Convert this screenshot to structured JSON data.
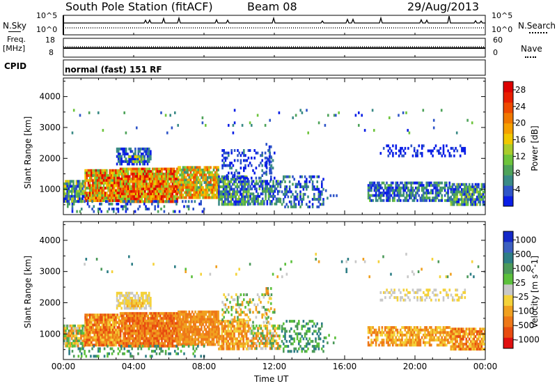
{
  "header": {
    "station": "South Pole Station (fitACF)",
    "beam": "Beam 08",
    "date": "29/Aug/2013"
  },
  "strips": {
    "nsky_label": "N.Sky",
    "nsearch_label": "N.Search",
    "nsky_ticks": [
      "10^5",
      "10^0"
    ],
    "nsearch_ticks": [
      "10^5",
      "10^0"
    ],
    "freq_label": "Freq.",
    "freq_unit": "[MHz]",
    "freq_ticks": [
      "18",
      "8"
    ],
    "nave_label": "Nave",
    "nave_ticks": [
      "60",
      "0"
    ],
    "cpid_label": "CPID",
    "cpid_value": "normal (fast) 151 RF"
  },
  "colors": {
    "power": [
      "#0a1ee6",
      "#2f55c8",
      "#3a8a86",
      "#4ea35a",
      "#6ec43c",
      "#aacc2c",
      "#f0c800",
      "#f5a000",
      "#f07800",
      "#ee4a00",
      "#e81e00",
      "#dd0000"
    ],
    "velocity": [
      "#1428c8",
      "#3c60c0",
      "#2e7e86",
      "#4c9a5a",
      "#5cc03c",
      "#c8c8c8",
      "#f4d23a",
      "#f0a020",
      "#ee7818",
      "#e84c10",
      "#e01010"
    ]
  },
  "chart_data": [
    {
      "type": "heatmap",
      "title": "Power",
      "xlabel": "",
      "ylabel": "Slant Range [km]",
      "xlim": [
        0,
        24
      ],
      "ylim": [
        180,
        4600
      ],
      "x_ticks": [
        0,
        4,
        8,
        12,
        16,
        20,
        24
      ],
      "y_ticks": [
        1000,
        2000,
        3000,
        4000
      ],
      "colorbar_label": "Power [dB]",
      "colorbar_ticks": [
        "4",
        "8",
        "12",
        "16",
        "20",
        "24",
        "28"
      ],
      "colorbar_range": [
        0,
        30
      ]
    },
    {
      "type": "heatmap",
      "title": "Velocity",
      "xlabel": "Time UT",
      "ylabel": "Slant Range [km]",
      "xlim": [
        0,
        24
      ],
      "ylim": [
        180,
        4600
      ],
      "x_ticks": [
        0,
        4,
        8,
        12,
        16,
        20,
        24
      ],
      "x_tick_labels": [
        "00:00",
        "04:00",
        "08:00",
        "12:00",
        "16:00",
        "20:00",
        "00:00"
      ],
      "y_ticks": [
        1000,
        2000,
        3000,
        4000
      ],
      "colorbar_label": "Velocity [m s^-1]",
      "colorbar_ticks": [
        "1000",
        "500",
        "100",
        "25",
        "-25",
        "-100",
        "-500",
        "-1000"
      ]
    }
  ]
}
